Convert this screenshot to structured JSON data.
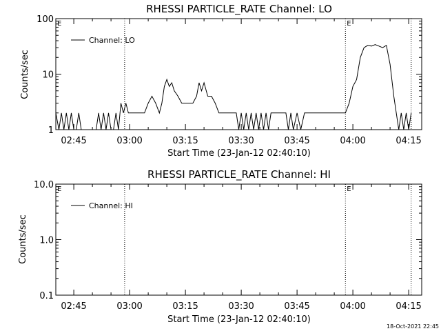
{
  "footer": {
    "timestamp": "18-Oct-2021 22:45"
  },
  "chart_data": [
    {
      "type": "line",
      "title": "RHESSI PARTICLE_RATE Channel: LO",
      "xlabel": "Start Time (23-Jan-12 02:40:10)",
      "ylabel": "Counts/sec",
      "y_scale": "log",
      "xlim": [
        "02:40:10",
        "04:18:30"
      ],
      "ylim": [
        1,
        100
      ],
      "x_ticks": [
        "02:45",
        "03:00",
        "03:15",
        "03:30",
        "03:45",
        "04:00",
        "04:15"
      ],
      "y_ticks": [
        "1",
        "10",
        "100"
      ],
      "markers": [
        {
          "label": "E",
          "time": "02:40:10"
        },
        {
          "time": "02:58:40"
        },
        {
          "label": "E",
          "time": "03:58:00"
        },
        {
          "time": "04:15:40"
        }
      ],
      "legend": {
        "placement": "top-left"
      },
      "series": [
        {
          "name": "Channel: LO",
          "time": [
            "02:40:10",
            "02:41:00",
            "02:41:40",
            "02:42:20",
            "02:43:00",
            "02:43:40",
            "02:44:20",
            "02:45:00",
            "02:45:40",
            "02:46:20",
            "02:47:00",
            "02:47:40",
            "02:48:20",
            "02:49:00",
            "02:49:40",
            "02:50:20",
            "02:51:00",
            "02:51:40",
            "02:52:20",
            "02:53:00",
            "02:53:40",
            "02:54:20",
            "02:55:00",
            "02:55:40",
            "02:56:20",
            "02:57:00",
            "02:57:40",
            "02:58:20",
            "02:59:00",
            "02:59:40",
            "03:00:20",
            "03:01:00",
            "03:02:00",
            "03:03:00",
            "03:04:00",
            "03:05:00",
            "03:06:00",
            "03:07:00",
            "03:08:00",
            "03:08:40",
            "03:09:20",
            "03:10:00",
            "03:10:40",
            "03:11:20",
            "03:12:00",
            "03:13:00",
            "03:14:00",
            "03:15:00",
            "03:16:00",
            "03:17:00",
            "03:18:00",
            "03:18:40",
            "03:19:20",
            "03:20:00",
            "03:21:00",
            "03:22:00",
            "03:23:00",
            "03:24:00",
            "03:25:00",
            "03:26:00",
            "03:27:00",
            "03:28:00",
            "03:28:40",
            "03:29:20",
            "03:30:00",
            "03:30:40",
            "03:31:20",
            "03:32:00",
            "03:32:40",
            "03:33:20",
            "03:34:00",
            "03:34:40",
            "03:35:20",
            "03:36:00",
            "03:36:40",
            "03:37:20",
            "03:38:00",
            "03:39:00",
            "03:40:00",
            "03:41:00",
            "03:42:00",
            "03:42:40",
            "03:43:20",
            "03:44:00",
            "03:45:00",
            "03:46:00",
            "03:47:00",
            "03:47:40",
            "03:48:20",
            "03:49:00",
            "03:50:00",
            "03:51:00",
            "03:52:00",
            "03:53:00",
            "03:54:00",
            "03:55:00",
            "03:56:00",
            "03:57:00",
            "03:58:00",
            "03:59:00",
            "04:00:00",
            "04:01:00",
            "04:02:00",
            "04:03:00",
            "04:04:00",
            "04:05:00",
            "04:06:00",
            "04:07:00",
            "04:08:00",
            "04:09:00",
            "04:10:00",
            "04:11:00",
            "04:11:40",
            "04:12:20",
            "04:13:00",
            "04:13:40",
            "04:14:20",
            "04:15:00",
            "04:15:40"
          ],
          "values": [
            2,
            1,
            2,
            1,
            2,
            1,
            2,
            1,
            1,
            2,
            1,
            1,
            1,
            1,
            1,
            1,
            1,
            2,
            1,
            2,
            1,
            2,
            1,
            1,
            2,
            1,
            3,
            2,
            3,
            2,
            2,
            2,
            2,
            2,
            2,
            3,
            4,
            3,
            2,
            3,
            6,
            8,
            6,
            7,
            5,
            4,
            3,
            3,
            3,
            3,
            4,
            7,
            5,
            7,
            4,
            4,
            3,
            2,
            2,
            2,
            2,
            2,
            2,
            1,
            2,
            1,
            2,
            1,
            2,
            1,
            2,
            1,
            2,
            1,
            2,
            1,
            2,
            2,
            2,
            2,
            2,
            1,
            2,
            1,
            2,
            1,
            2,
            2,
            2,
            2,
            2,
            2,
            2,
            2,
            2,
            2,
            2,
            2,
            2,
            3,
            6,
            8,
            20,
            30,
            33,
            32,
            34,
            32,
            30,
            33,
            15,
            4,
            2,
            1,
            2,
            1,
            2,
            1,
            2
          ]
        }
      ]
    },
    {
      "type": "line",
      "title": "RHESSI PARTICLE_RATE Channel: HI",
      "xlabel": "Start Time (23-Jan-12 02:40:10)",
      "ylabel": "Counts/sec",
      "y_scale": "log",
      "xlim": [
        "02:40:10",
        "04:18:30"
      ],
      "ylim": [
        0.1,
        10
      ],
      "x_ticks": [
        "02:45",
        "03:00",
        "03:15",
        "03:30",
        "03:45",
        "04:00",
        "04:15"
      ],
      "y_ticks": [
        "0.1",
        "1.0",
        "10.0"
      ],
      "markers": [
        {
          "label": "E",
          "time": "02:40:10"
        },
        {
          "time": "02:58:40"
        },
        {
          "label": "E",
          "time": "03:58:00"
        },
        {
          "time": "04:15:40"
        }
      ],
      "legend": {
        "placement": "top-left"
      },
      "series": [
        {
          "name": "Channel: HI",
          "time": [],
          "values": []
        }
      ]
    }
  ]
}
